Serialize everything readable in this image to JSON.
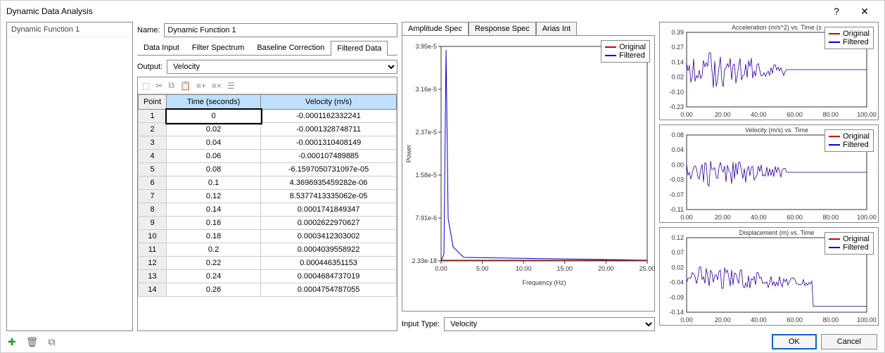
{
  "window": {
    "title": "Dynamic Data Analysis"
  },
  "sidebar": {
    "items": [
      "Dynamic Function 1"
    ]
  },
  "name": {
    "label": "Name:",
    "value": "Dynamic Function 1"
  },
  "tabs": {
    "items": [
      "Data Input",
      "Filter Spectrum",
      "Baseline Correction",
      "Filtered Data"
    ],
    "active": 3
  },
  "output": {
    "label": "Output:",
    "options": [
      "Velocity"
    ],
    "selected": "Velocity"
  },
  "grid": {
    "headers": [
      "Point",
      "Time (seconds)",
      "Velocity (m/s)"
    ],
    "rows": [
      {
        "n": 1,
        "t": "0",
        "v": "-0.0001162332241"
      },
      {
        "n": 2,
        "t": "0.02",
        "v": "-0.0001328748711"
      },
      {
        "n": 3,
        "t": "0.04",
        "v": "-0.0001310408149"
      },
      {
        "n": 4,
        "t": "0.06",
        "v": "-0.000107489885"
      },
      {
        "n": 5,
        "t": "0.08",
        "v": "-6.1597050731097e-05"
      },
      {
        "n": 6,
        "t": "0.1",
        "v": "4.3696935459282e-06"
      },
      {
        "n": 7,
        "t": "0.12",
        "v": "8.5377413335062e-05"
      },
      {
        "n": 8,
        "t": "0.14",
        "v": "0.0001741849347"
      },
      {
        "n": 9,
        "t": "0.16",
        "v": "0.0002622970627"
      },
      {
        "n": 10,
        "t": "0.18",
        "v": "0.0003412303002"
      },
      {
        "n": 11,
        "t": "0.2",
        "v": "0.0004039558922"
      },
      {
        "n": 12,
        "t": "0.22",
        "v": "0.000446351153"
      },
      {
        "n": 13,
        "t": "0.24",
        "v": "0.0004684737019"
      },
      {
        "n": 14,
        "t": "0.26",
        "v": "0.0004754787055"
      }
    ]
  },
  "chart_tabs": {
    "items": [
      "Amplitude Spec",
      "Response Spec",
      "Arias Int"
    ],
    "active": 0
  },
  "main_chart": {
    "legend": [
      {
        "label": "Original",
        "color": "#d40000"
      },
      {
        "label": "Filtered",
        "color": "#0000d4"
      }
    ],
    "xlabel": "Frequency (Hz)",
    "ylabel": "Power",
    "xticks": [
      "0.00",
      "5.00",
      "10.00",
      "15.00",
      "20.00",
      "25.00"
    ],
    "yticks": [
      "2.33e-18",
      "7.91e-6",
      "1.58e-5",
      "2.37e-5",
      "3.16e-5",
      "3.95e-5"
    ],
    "peak_x": 0.6,
    "peak_y": 1.0
  },
  "input_type": {
    "label": "Input Type:",
    "options": [
      "Velocity"
    ],
    "selected": "Velocity"
  },
  "mini_charts": [
    {
      "title": "Acceleration (m/s^2) vs. Time (s",
      "xticks": [
        "0.00",
        "20.00",
        "40.00",
        "60.00",
        "80.00",
        "100.00"
      ],
      "yticks": [
        "-0.23",
        "-0.10",
        "0.02",
        "0.14",
        "0.27",
        "0.39"
      ],
      "legend": [
        {
          "label": "Original",
          "color": "#d40000"
        },
        {
          "label": "Filtered",
          "color": "#0000d4"
        }
      ],
      "noise_end": 0.55,
      "amp": 1.0
    },
    {
      "title": "Velocity (m/s) vs. Time",
      "xticks": [
        "0.00",
        "20.00",
        "40.00",
        "60.00",
        "80.00",
        "100.00"
      ],
      "yticks": [
        "-0.11",
        "-0.07",
        "-0.03",
        "0.00",
        "0.04",
        "0.08"
      ],
      "legend": [
        {
          "label": "Original",
          "color": "#d40000"
        },
        {
          "label": "Filtered",
          "color": "#0000d4"
        }
      ],
      "noise_end": 0.55,
      "amp": 0.8
    },
    {
      "title": "Displacement (m) vs. Time",
      "xticks": [
        "0.00",
        "20.00",
        "40.00",
        "60.00",
        "80.00",
        "100.00"
      ],
      "yticks": [
        "-0.14",
        "-0.09",
        "-0.04",
        "0.02",
        "0.07",
        "0.12"
      ],
      "legend": [
        {
          "label": "Original",
          "color": "#d40000"
        },
        {
          "label": "Filtered",
          "color": "#0000d4"
        }
      ],
      "noise_end": 0.7,
      "amp": 0.6,
      "drift": true
    }
  ],
  "buttons": {
    "ok": "OK",
    "cancel": "Cancel"
  }
}
